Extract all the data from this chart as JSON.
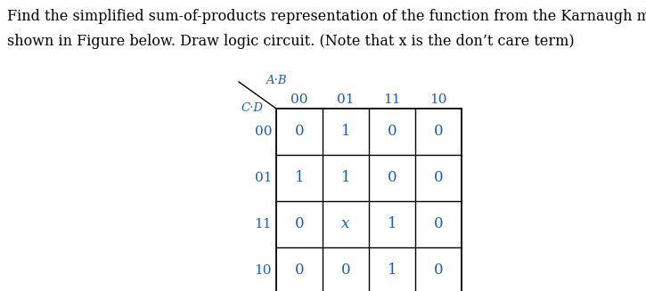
{
  "title_line1": "Find the simplified sum-of-products representation of the function from the Karnaugh map",
  "title_line2": "shown in Figure below. Draw logic circuit. (Note that x is the don’t care term)",
  "ab_label": "A·B",
  "cd_label": "C·D",
  "col_headers": [
    "00",
    "01",
    "11",
    "10"
  ],
  "row_headers": [
    "00",
    "01",
    "11",
    "10"
  ],
  "cell_values": [
    [
      "0",
      "1",
      "0",
      "0"
    ],
    [
      "1",
      "1",
      "0",
      "0"
    ],
    [
      "0",
      "x",
      "1",
      "0"
    ],
    [
      "0",
      "0",
      "1",
      "0"
    ]
  ],
  "text_color": "#1a5fa8",
  "title_color": "#000000",
  "title_fontsize": 11.5,
  "header_fontsize": 11,
  "cell_fontsize": 12
}
